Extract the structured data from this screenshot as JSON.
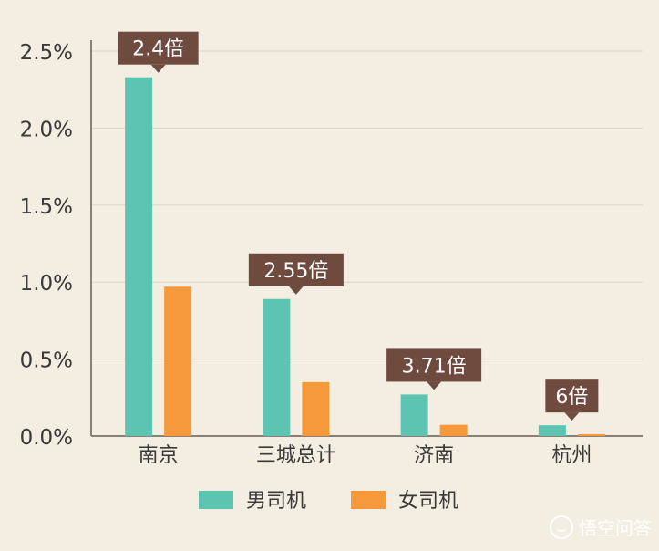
{
  "chart_data": {
    "type": "bar",
    "title": "",
    "xlabel": "",
    "ylabel": "",
    "categories": [
      "南京",
      "三城总计",
      "济南",
      "杭州"
    ],
    "series": [
      {
        "name": "男司机",
        "values": [
          2.33,
          0.89,
          0.27,
          0.07
        ],
        "color": "#5cc4b0"
      },
      {
        "name": "女司机",
        "values": [
          0.97,
          0.35,
          0.073,
          0.012
        ],
        "color": "#f5993a"
      }
    ],
    "ylim": [
      0,
      2.5
    ],
    "yticks": [
      "0.0%",
      "0.5%",
      "1.0%",
      "1.5%",
      "2.0%",
      "2.5%"
    ],
    "ratio_labels": [
      "2.4倍",
      "2.55倍",
      "3.71倍",
      "6倍"
    ],
    "grid": true,
    "legend_position": "bottom-center"
  },
  "colors": {
    "background": "#f4ede1",
    "callout": "#6e4a3f",
    "axis": "#8a7f74",
    "grid": "#dcd3c4",
    "text": "#3a3a3a"
  },
  "watermark": {
    "text": "悟空问答",
    "icon": "wukong-logo-icon"
  }
}
